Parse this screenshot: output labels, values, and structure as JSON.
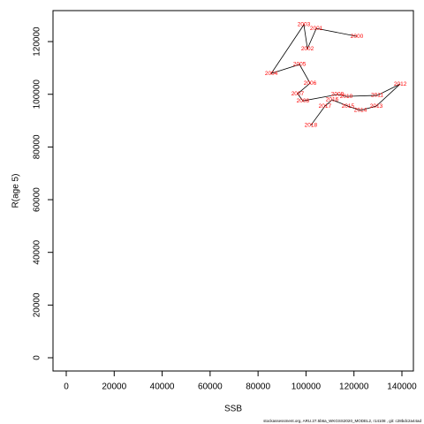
{
  "chart_data": {
    "type": "line",
    "x_label": "SSB",
    "y_label": "R(age 5)",
    "labels": [
      "2000",
      "2001",
      "2002",
      "2003",
      "2004",
      "2005",
      "2006",
      "2007",
      "2008",
      "2009",
      "2010",
      "2011",
      "2012",
      "2013",
      "2014",
      "2015",
      "2016",
      "2017",
      "2018"
    ],
    "x": [
      121200,
      104300,
      100600,
      99100,
      85500,
      97300,
      101700,
      96500,
      98700,
      113100,
      116800,
      129700,
      139300,
      129300,
      122700,
      117500,
      110900,
      107900,
      102000
    ],
    "y": [
      122000,
      125000,
      117300,
      126400,
      107900,
      111300,
      104200,
      100200,
      97500,
      99900,
      99200,
      99600,
      103900,
      95500,
      93900,
      95500,
      97900,
      95500,
      88200
    ],
    "line_color": "#000000",
    "label_color": "#ff0000",
    "xlim": [
      -5526,
      144790
    ],
    "ylim": [
      -5028,
      131760
    ],
    "xticks": [
      0,
      20000,
      40000,
      60000,
      80000,
      100000,
      120000,
      140000
    ],
    "yticks": [
      0,
      20000,
      40000,
      60000,
      80000,
      100000,
      120000
    ],
    "footnote": "stockassessment.org, ARU.27.5b6a_WKGSS2020_MODEL2, r14108 , git: c28bdc2a44ad"
  }
}
